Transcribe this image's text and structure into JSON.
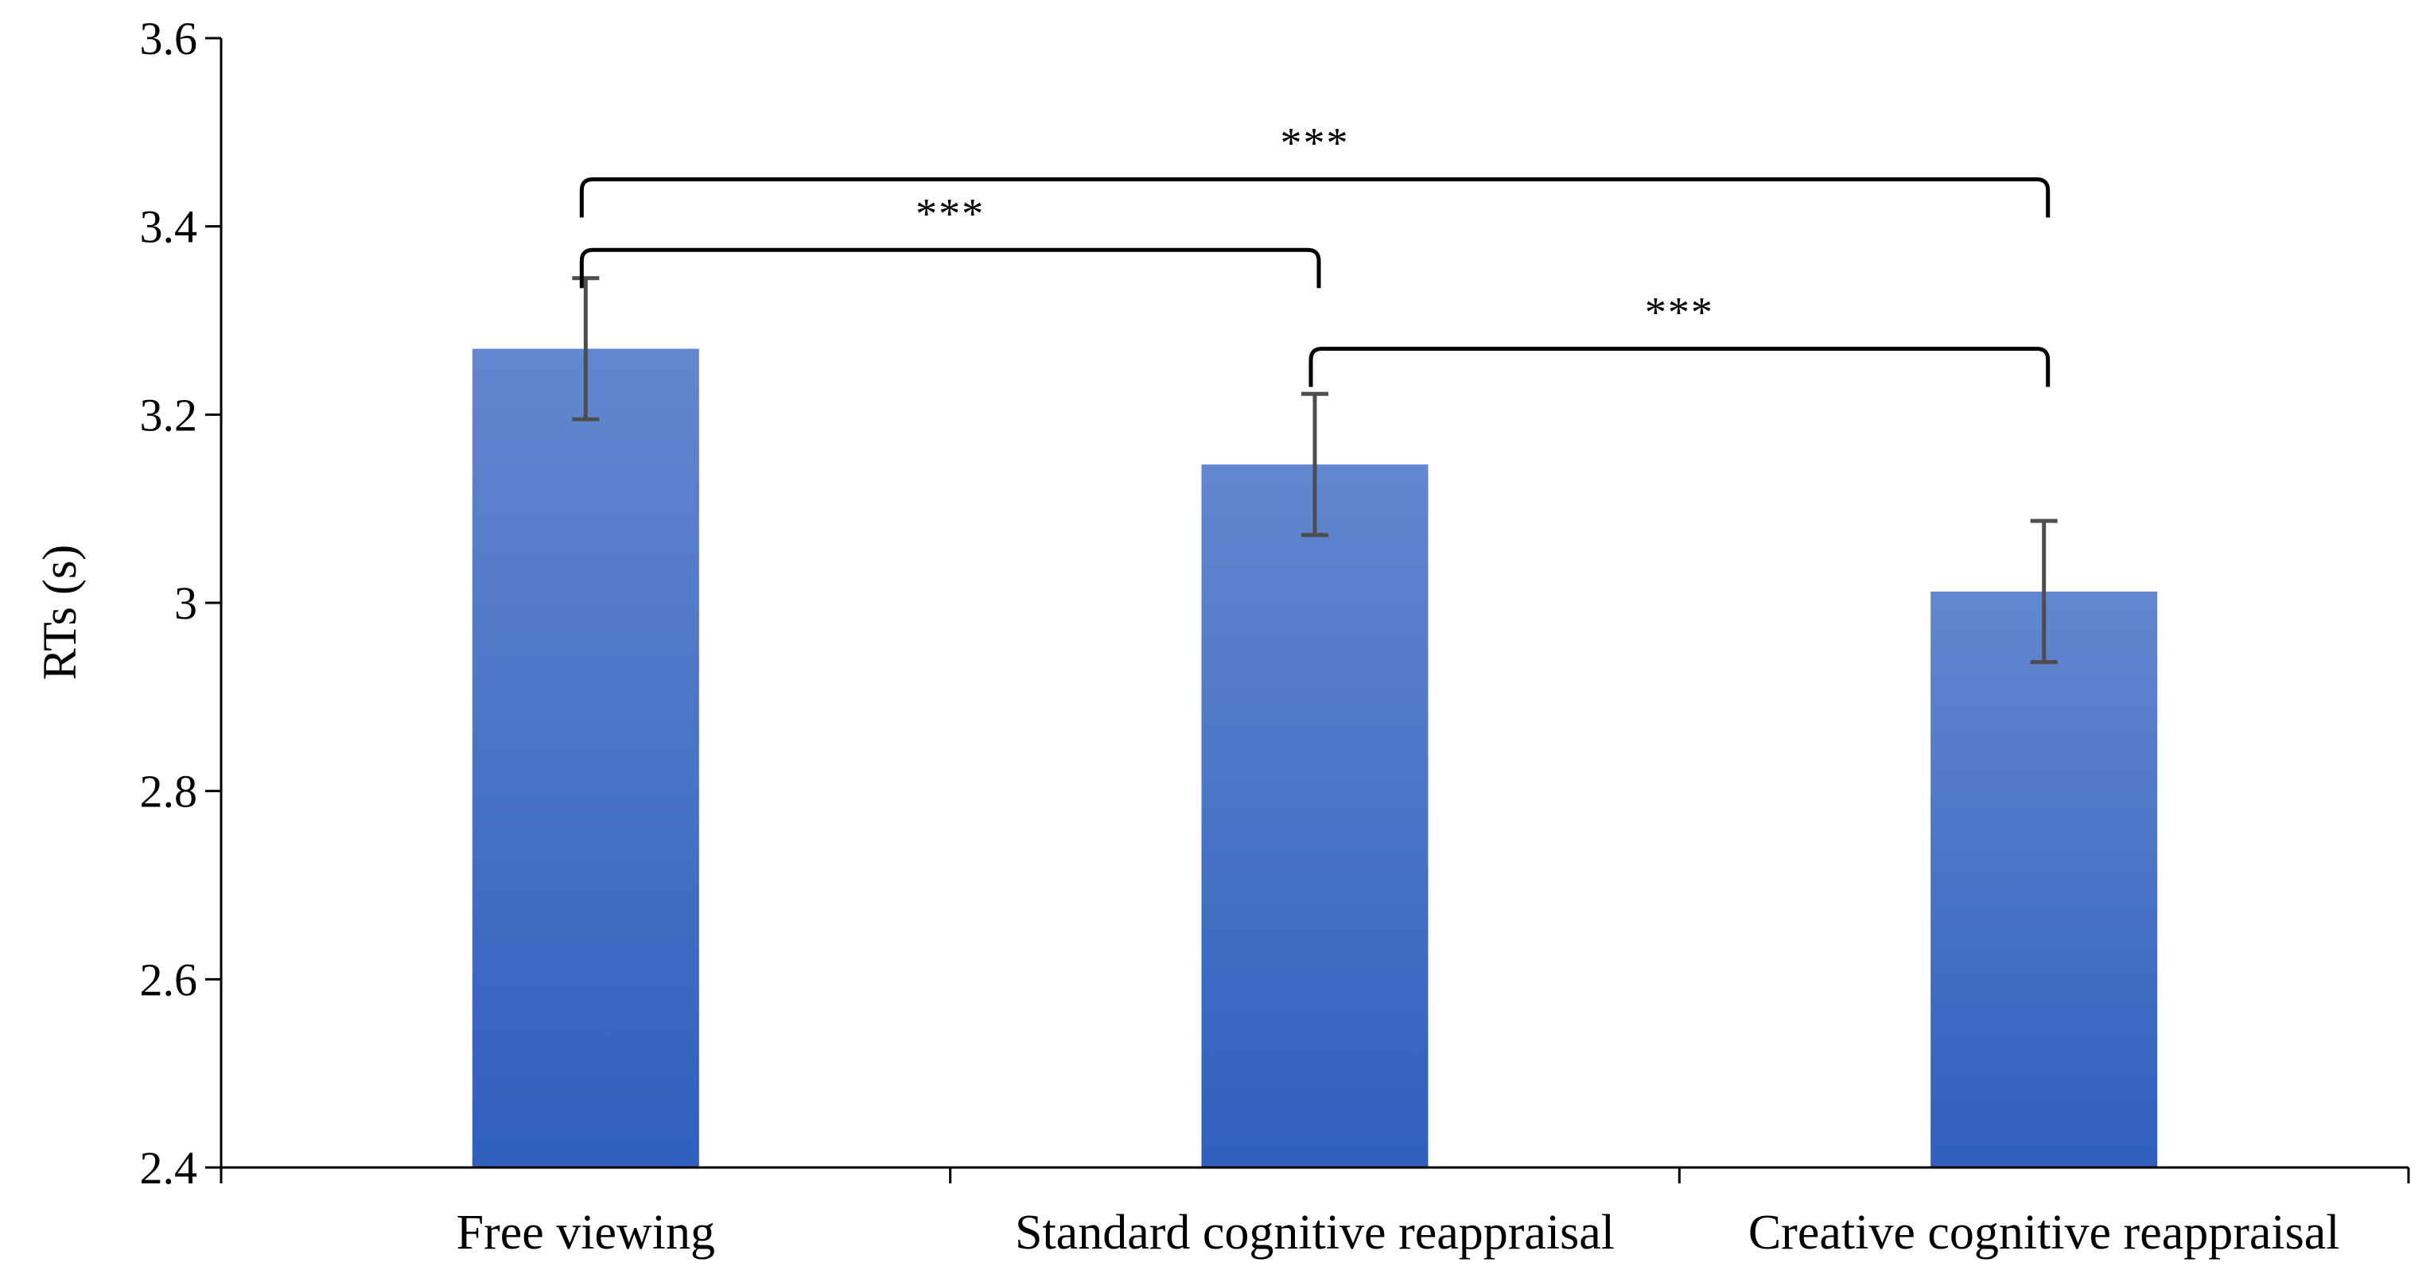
{
  "chart_data": {
    "type": "bar",
    "categories": [
      "Free viewing",
      "Standard cognitive reappraisal",
      "Creative cognitive reappraisal"
    ],
    "values": [
      3.27,
      3.147,
      3.012
    ],
    "error": [
      0.075,
      0.075,
      0.075
    ],
    "title": "",
    "xlabel": "",
    "ylabel": "RTs (s)",
    "ylim": [
      2.4,
      3.6
    ],
    "yticks": [
      2.4,
      2.6,
      2.8,
      3.0,
      3.2,
      3.4,
      3.6
    ],
    "ytick_labels": [
      "2.4",
      "2.6",
      "2.8",
      "3",
      "3.2",
      "3.4",
      "3.6"
    ],
    "grid": false,
    "bar_color_top": "#6387cf",
    "bar_color_bottom": "#2f60bd",
    "error_bar_color": "#4d4d4d",
    "significance": [
      {
        "from": 0,
        "to": 2,
        "y": 3.45,
        "label": "***"
      },
      {
        "from": 0,
        "to": 1,
        "y": 3.375,
        "label": "***"
      },
      {
        "from": 1,
        "to": 2,
        "y": 3.27,
        "label": "***"
      }
    ]
  }
}
